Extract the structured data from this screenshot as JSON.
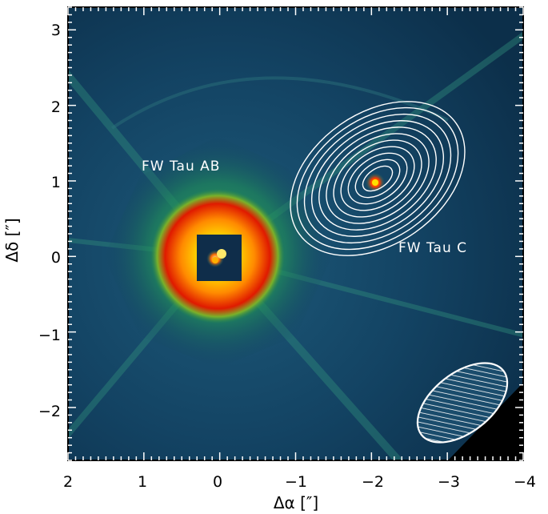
{
  "figure": {
    "annotations": {
      "primary_label": "FW Tau AB",
      "companion_label": "FW Tau C"
    },
    "axes": {
      "xlabel": "Δα [″]",
      "ylabel": "Δδ [″]",
      "xlim": [
        2,
        -4
      ],
      "ylim": [
        -2.7,
        3.3
      ],
      "xticks": [
        "2",
        "1",
        "0",
        "−1",
        "−2",
        "−3",
        "−4"
      ],
      "yticks": [
        "−2",
        "−1",
        "0",
        "1",
        "2",
        "3"
      ]
    },
    "colors": {
      "background": "#103a58",
      "frame": "#000000",
      "contours": "#ffffff"
    },
    "icons": [
      "beam-ellipse-icon"
    ]
  }
}
